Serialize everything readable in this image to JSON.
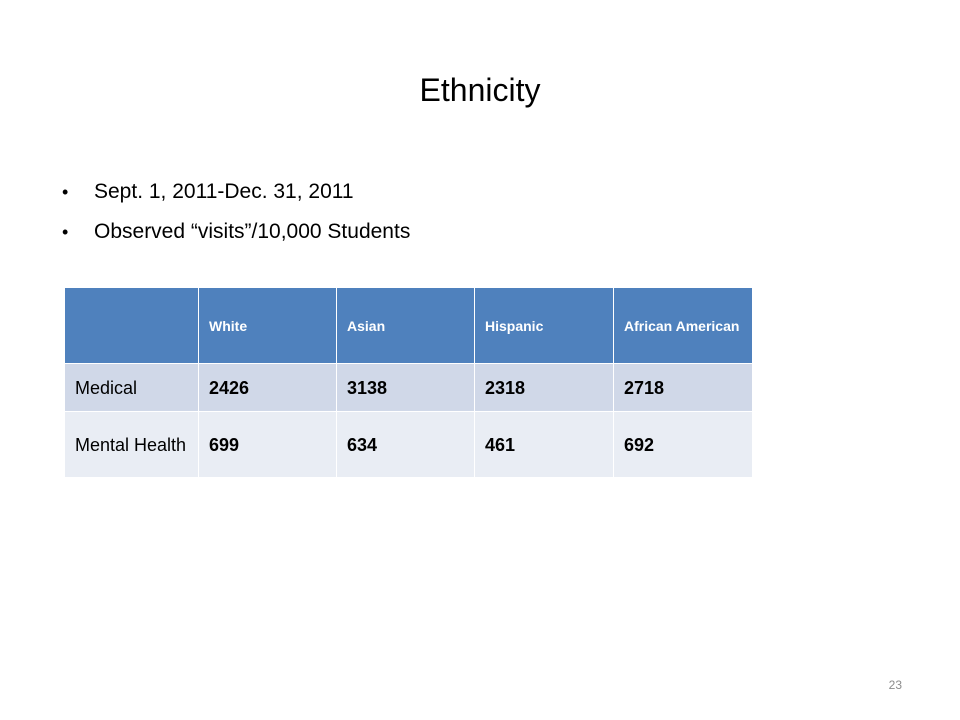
{
  "slide": {
    "title": "Ethnicity",
    "bullets": [
      "Sept. 1, 2011-Dec. 31, 2011",
      "Observed “visits”/10,000 Students"
    ],
    "page_number": "23"
  },
  "table": {
    "headers": [
      "",
      "White",
      "Asian",
      "Hispanic",
      "African American"
    ],
    "rows": [
      {
        "label": "Medical",
        "values": [
          "2426",
          "3138",
          "2318",
          "2718"
        ]
      },
      {
        "label": "Mental Health",
        "values": [
          "699",
          "634",
          "461",
          "692"
        ]
      }
    ]
  },
  "colors": {
    "header_bg": "#4f81bd",
    "row_odd_bg": "#d0d8e8",
    "row_even_bg": "#e9edf4",
    "page_number": "#8c8c8c"
  }
}
